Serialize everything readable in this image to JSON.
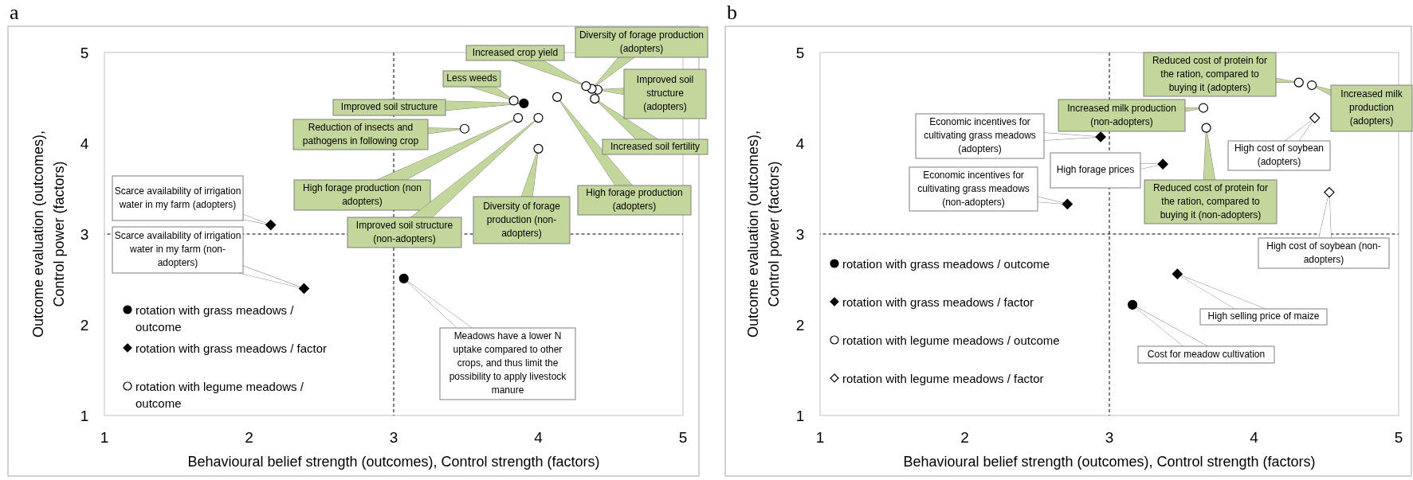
{
  "chart_data": [
    {
      "type": "scatter",
      "title": "a",
      "xlabel": "Behavioural belief strength (outcomes), Control strength (factors)",
      "ylabel": "Outcome evaluation (outcomes),\nControl power (factors)",
      "xlim": [
        1,
        5
      ],
      "ylim": [
        1,
        5
      ],
      "xticks": [
        1,
        2,
        3,
        4,
        5
      ],
      "yticks": [
        1,
        2,
        3,
        4,
        5
      ],
      "legend": "bottom left",
      "ref_lines": [
        {
          "axis": "x",
          "value": 3,
          "line_style": "dashed"
        },
        {
          "axis": "y",
          "value": 3,
          "line_style": "dashed"
        }
      ],
      "series": [
        {
          "name": "rotation with grass meadows / outcome",
          "color": "#000000",
          "marker": "circle",
          "x": [
            3.9,
            3.07
          ],
          "values": [
            4.44,
            2.51
          ]
        },
        {
          "name": "rotation with grass meadows / factor",
          "color": "#000000",
          "marker": "diamond",
          "x": [
            2.15,
            2.38
          ],
          "values": [
            3.1,
            2.4
          ]
        },
        {
          "name": "rotation with legume meadows / outcome",
          "color": "#ffffff",
          "marker": "circle",
          "x": [
            3.83,
            3.49,
            3.86,
            4.0,
            4.0,
            4.13,
            4.39,
            4.41,
            4.37,
            4.33
          ],
          "values": [
            4.47,
            4.16,
            4.28,
            4.28,
            3.94,
            4.51,
            4.49,
            4.59,
            4.6,
            4.63
          ]
        }
      ],
      "annotations": [
        {
          "text": "Less weeds",
          "x": 3.83,
          "y": 4.47
        },
        {
          "text": "Improved soil structure",
          "x": 3.9,
          "y": 4.44
        },
        {
          "text": "Reduction of insects and pathogens in following crop",
          "x": 3.49,
          "y": 4.16
        },
        {
          "text": "High forage production (non adopters)",
          "x": 3.86,
          "y": 4.28
        },
        {
          "text": "Improved soil structure (non-adopters)",
          "x": 4.0,
          "y": 4.28
        },
        {
          "text": "Diversity of forage production (non-adopters)",
          "x": 4.0,
          "y": 3.94
        },
        {
          "text": "High forage production (adopters)",
          "x": 4.13,
          "y": 4.51
        },
        {
          "text": "Increased soil fertility",
          "x": 4.39,
          "y": 4.49
        },
        {
          "text": "Improved soil structure (adopters)",
          "x": 4.41,
          "y": 4.59
        },
        {
          "text": "Diversity of forage production (adopters)",
          "x": 4.37,
          "y": 4.6
        },
        {
          "text": "Increased crop yield",
          "x": 4.33,
          "y": 4.63
        },
        {
          "text": "Scarce availability of irrigation water in my farm (adopters)",
          "x": 2.15,
          "y": 3.1
        },
        {
          "text": "Scarce availability of irrigation water in my farm (non-adopters)",
          "x": 2.38,
          "y": 2.4
        },
        {
          "text": "Meadows have a lower N uptake compared to other crops, and thus limit the possibility to apply livestock manure",
          "x": 3.07,
          "y": 2.51
        }
      ]
    },
    {
      "type": "scatter",
      "title": "b",
      "xlabel": "Behavioural belief strength (outcomes), Control strength (factors)",
      "ylabel": "Outcome evaluation (outcomes),\nControl power (factors)",
      "xlim": [
        1,
        5
      ],
      "ylim": [
        1,
        5
      ],
      "xticks": [
        1,
        2,
        3,
        4,
        5
      ],
      "yticks": [
        1,
        2,
        3,
        4,
        5
      ],
      "legend": "bottom left",
      "ref_lines": [
        {
          "axis": "x",
          "value": 3,
          "line_style": "dashed"
        },
        {
          "axis": "y",
          "value": 3,
          "line_style": "dashed"
        }
      ],
      "series": [
        {
          "name": "rotation with grass meadows / outcome",
          "color": "#000000",
          "marker": "circle",
          "x": [
            3.16
          ],
          "values": [
            2.22
          ]
        },
        {
          "name": "rotation with grass meadows / factor",
          "color": "#000000",
          "marker": "diamond",
          "x": [
            2.94,
            3.37,
            2.71,
            3.47
          ],
          "values": [
            4.07,
            3.77,
            3.33,
            2.56
          ]
        },
        {
          "name": "rotation with legume meadows / outcome",
          "color": "#ffffff",
          "marker": "circle",
          "x": [
            4.31,
            4.4,
            3.65,
            3.67
          ],
          "values": [
            4.67,
            4.64,
            4.39,
            4.17
          ]
        },
        {
          "name": "rotation with legume meadows / factor",
          "color": "#ffffff",
          "marker": "diamond",
          "x": [
            4.42,
            4.52
          ],
          "values": [
            4.28,
            3.46
          ]
        }
      ],
      "annotations": [
        {
          "text": "Reduced cost of protein for the ration, compared to buying it (adopters)",
          "x": 4.31,
          "y": 4.67
        },
        {
          "text": "Increased milk production (adopters)",
          "x": 4.4,
          "y": 4.64
        },
        {
          "text": "Increased milk production (non-adopters)",
          "x": 3.65,
          "y": 4.39
        },
        {
          "text": "Reduced cost of protein for the ration, compared to buying it (non-adopters)",
          "x": 3.67,
          "y": 4.17
        },
        {
          "text": "Economic incentives for cultivating grass meadows (adopters)",
          "x": 2.94,
          "y": 4.07
        },
        {
          "text": "High forage prices",
          "x": 3.37,
          "y": 3.77
        },
        {
          "text": "Economic incentives for cultivating grass meadows (non-adopters)",
          "x": 2.71,
          "y": 3.33
        },
        {
          "text": "High cost of soybean (adopters)",
          "x": 4.42,
          "y": 4.28
        },
        {
          "text": "High cost of soybean (non-adopters)",
          "x": 4.52,
          "y": 3.46
        },
        {
          "text": "High selling price of maize",
          "x": 3.47,
          "y": 2.56
        },
        {
          "text": "Cost for meadow cultivation",
          "x": 3.16,
          "y": 2.22
        }
      ]
    }
  ]
}
